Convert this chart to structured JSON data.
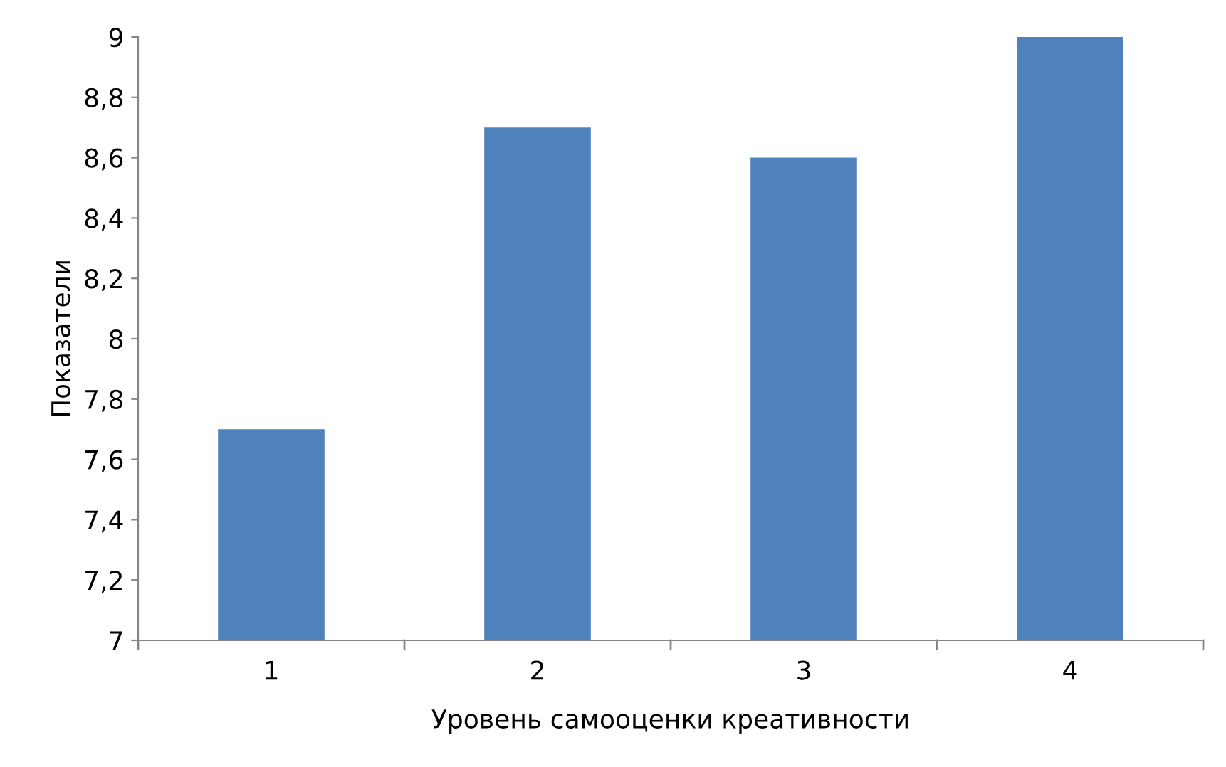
{
  "chart_data": {
    "type": "bar",
    "xlabel": "Уровень самооценки креативности",
    "ylabel": "Показатели",
    "categories": [
      "1",
      "2",
      "3",
      "4"
    ],
    "values": [
      7.7,
      8.7,
      8.6,
      9.0
    ],
    "color": "#4f81bd",
    "ylim": [
      7,
      9
    ],
    "yticks": [
      7,
      {
        "value": 7.2,
        "label": "7,2"
      },
      {
        "value": 7.4,
        "label": "7,4"
      },
      {
        "value": 7.6,
        "label": "7,6"
      },
      {
        "value": 7.8,
        "label": "7,8"
      },
      8,
      {
        "value": 8.2,
        "label": "8,2"
      },
      {
        "value": 8.4,
        "label": "8,4"
      },
      {
        "value": 8.6,
        "label": "8,6"
      },
      {
        "value": 8.8,
        "label": "8,8"
      },
      9
    ],
    "grid": false,
    "legend": false
  }
}
